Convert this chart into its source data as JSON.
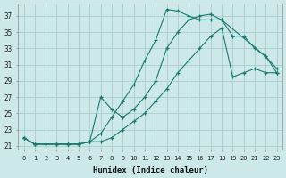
{
  "xlabel": "Humidex (Indice chaleur)",
  "ylabel": "",
  "bg_color": "#cce8e8",
  "grid_color": "#aacccc",
  "line_color": "#1a7a6e",
  "xlim": [
    -0.5,
    23.5
  ],
  "ylim": [
    20.5,
    38.5
  ],
  "xticks": [
    0,
    1,
    2,
    3,
    4,
    5,
    6,
    7,
    8,
    9,
    10,
    11,
    12,
    13,
    14,
    15,
    16,
    17,
    18,
    19,
    20,
    21,
    22,
    23
  ],
  "yticks": [
    21,
    23,
    25,
    27,
    29,
    31,
    33,
    35,
    37
  ],
  "line1_x": [
    0,
    1,
    2,
    3,
    4,
    5,
    6,
    7,
    8,
    9,
    10,
    11,
    12,
    13,
    14,
    15,
    16,
    17,
    18,
    22,
    23
  ],
  "line1_y": [
    22.0,
    21.2,
    21.2,
    21.2,
    21.2,
    21.2,
    21.5,
    22.5,
    24.5,
    26.5,
    28.5,
    31.5,
    34.0,
    37.8,
    37.6,
    37.0,
    36.5,
    36.5,
    36.5,
    32.0,
    30.0
  ],
  "line2_x": [
    0,
    1,
    3,
    4,
    5,
    6,
    7,
    8,
    9,
    10,
    11,
    12,
    13,
    14,
    15,
    16,
    17,
    18,
    19,
    20,
    21,
    22,
    23
  ],
  "line2_y": [
    22.0,
    21.2,
    21.2,
    21.2,
    21.2,
    21.5,
    27.0,
    25.5,
    24.5,
    25.5,
    27.0,
    29.0,
    33.0,
    35.0,
    36.5,
    37.0,
    37.2,
    36.5,
    34.5,
    34.5,
    33.0,
    32.0,
    30.5
  ],
  "line3_x": [
    0,
    1,
    3,
    4,
    5,
    6,
    7,
    8,
    9,
    10,
    11,
    12,
    13,
    14,
    15,
    16,
    17,
    18,
    19,
    20,
    21,
    22,
    23
  ],
  "line3_y": [
    22.0,
    21.2,
    21.2,
    21.2,
    21.2,
    21.5,
    21.5,
    22.0,
    23.0,
    24.0,
    25.0,
    26.5,
    28.0,
    30.0,
    31.5,
    33.0,
    34.5,
    35.5,
    29.5,
    30.0,
    30.5,
    30.0,
    30.0
  ]
}
